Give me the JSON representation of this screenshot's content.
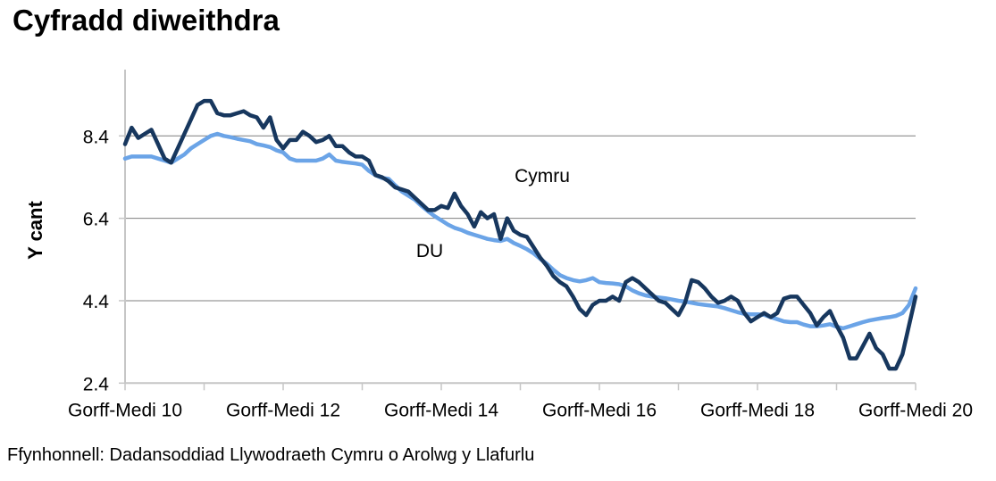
{
  "title": "Cyfradd diweithdra",
  "source_note": "Ffynhonnell: Dadansoddiad Llywodraeth Cymru o Arolwg y Llafurlu",
  "colors": {
    "cymru_line": "#17375E",
    "du_line": "#6BA4E7",
    "gridline": "#7F7F7F",
    "axis": "#C6C6C6",
    "text": "#000000",
    "background": "#FFFFFF"
  },
  "chart_data": {
    "type": "line",
    "title": "Cyfradd diweithdra",
    "xlabel": "",
    "ylabel": "Y cant",
    "ylim": [
      2.4,
      9.85
    ],
    "y_ticks": [
      8.4,
      6.4,
      4.4,
      2.4
    ],
    "grid": "horizontal",
    "legend": "inline labels next to lines",
    "x_tick_labels": [
      "Gorff-Medi 10",
      "Gorff-Medi 12",
      "Gorff-Medi 14",
      "Gorff-Medi 16",
      "Gorff-Medi 18",
      "Gorff-Medi 20"
    ],
    "x_tick_positions": [
      0,
      24,
      48,
      72,
      96,
      120
    ],
    "x_minor_tick_every": 12,
    "n_points": 121,
    "series": [
      {
        "name": "Cymru",
        "color": "#17375E",
        "values": [
          8.2,
          8.6,
          8.35,
          8.45,
          8.55,
          8.2,
          7.85,
          7.75,
          8.1,
          8.45,
          8.8,
          9.15,
          9.25,
          9.25,
          8.95,
          8.9,
          8.9,
          8.95,
          9.0,
          8.9,
          8.85,
          8.6,
          8.85,
          8.3,
          8.1,
          8.3,
          8.3,
          8.5,
          8.4,
          8.25,
          8.3,
          8.4,
          8.15,
          8.15,
          8.0,
          7.9,
          7.9,
          7.8,
          7.45,
          7.4,
          7.3,
          7.15,
          7.1,
          7.05,
          6.9,
          6.75,
          6.6,
          6.6,
          6.7,
          6.65,
          7.0,
          6.7,
          6.5,
          6.2,
          6.55,
          6.4,
          6.5,
          5.9,
          6.4,
          6.1,
          6.0,
          5.95,
          5.7,
          5.45,
          5.25,
          5.0,
          4.85,
          4.75,
          4.5,
          4.2,
          4.05,
          4.3,
          4.4,
          4.4,
          4.5,
          4.4,
          4.85,
          4.95,
          4.85,
          4.7,
          4.55,
          4.4,
          4.35,
          4.2,
          4.05,
          4.35,
          4.9,
          4.85,
          4.7,
          4.5,
          4.35,
          4.4,
          4.5,
          4.4,
          4.1,
          3.9,
          4.0,
          4.1,
          4.0,
          4.1,
          4.45,
          4.5,
          4.5,
          4.3,
          4.1,
          3.8,
          4.0,
          4.15,
          3.8,
          3.5,
          3.0,
          3.0,
          3.3,
          3.6,
          3.25,
          3.1,
          2.75,
          2.75,
          3.1,
          3.8,
          4.5
        ]
      },
      {
        "name": "DU",
        "color": "#6BA4E7",
        "values": [
          7.85,
          7.9,
          7.9,
          7.9,
          7.9,
          7.85,
          7.8,
          7.75,
          7.85,
          7.95,
          8.1,
          8.2,
          8.3,
          8.4,
          8.45,
          8.4,
          8.37,
          8.33,
          8.3,
          8.27,
          8.2,
          8.17,
          8.13,
          8.05,
          8.0,
          7.85,
          7.8,
          7.8,
          7.8,
          7.8,
          7.85,
          7.95,
          7.8,
          7.77,
          7.75,
          7.73,
          7.7,
          7.55,
          7.45,
          7.38,
          7.36,
          7.2,
          7.05,
          6.95,
          6.85,
          6.7,
          6.57,
          6.45,
          6.35,
          6.25,
          6.17,
          6.12,
          6.05,
          6.0,
          5.95,
          5.9,
          5.87,
          5.85,
          5.9,
          5.8,
          5.73,
          5.65,
          5.55,
          5.42,
          5.3,
          5.15,
          5.02,
          4.95,
          4.9,
          4.87,
          4.9,
          4.95,
          4.85,
          4.83,
          4.82,
          4.8,
          4.75,
          4.65,
          4.58,
          4.53,
          4.5,
          4.48,
          4.46,
          4.43,
          4.4,
          4.38,
          4.35,
          4.32,
          4.3,
          4.28,
          4.26,
          4.22,
          4.17,
          4.12,
          4.08,
          4.07,
          4.07,
          4.06,
          4.0,
          3.95,
          3.9,
          3.88,
          3.88,
          3.82,
          3.78,
          3.78,
          3.8,
          3.83,
          3.77,
          3.73,
          3.78,
          3.83,
          3.88,
          3.92,
          3.95,
          3.98,
          4.0,
          4.03,
          4.1,
          4.3,
          4.7
        ]
      }
    ]
  }
}
